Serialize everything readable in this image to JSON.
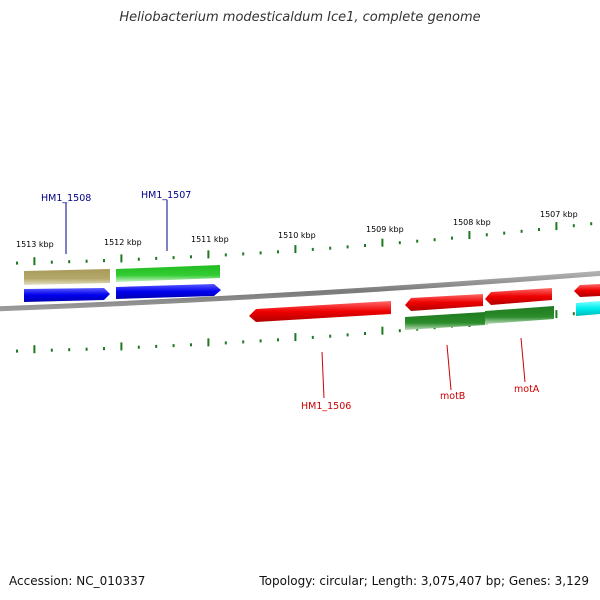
{
  "title": "Heliobacterium modesticaldum Ice1, complete genome",
  "footer": {
    "accession": "Accession: NC_010337",
    "summary": "Topology: circular; Length: 3,075,407 bp; Genes: 3,129"
  },
  "colors": {
    "backbone": "#8a8a8a",
    "tick": "#1f7a1f",
    "label_blue": "#00008b",
    "label_red": "#cc0000",
    "feature_blue": "#0000ee",
    "feature_red": "#ee0000",
    "feature_green": "#22bb22",
    "feature_darkgreen": "#1e7a1e",
    "feature_khaki": "#a89a5a",
    "feature_cyan": "#00eeee"
  },
  "ticks": [
    {
      "label": "1513 kbp"
    },
    {
      "label": "1512 kbp"
    },
    {
      "label": "1511 kbp"
    },
    {
      "label": "1510 kbp"
    },
    {
      "label": "1509 kbp"
    },
    {
      "label": "1508 kbp"
    },
    {
      "label": "1507 kbp"
    }
  ],
  "gene_labels": [
    {
      "name": "HM1_1508",
      "color": "label_blue"
    },
    {
      "name": "HM1_1507",
      "color": "label_blue"
    },
    {
      "name": "HM1_1506",
      "color": "label_red"
    },
    {
      "name": "motB",
      "color": "label_red"
    },
    {
      "name": "motA",
      "color": "label_red"
    }
  ]
}
